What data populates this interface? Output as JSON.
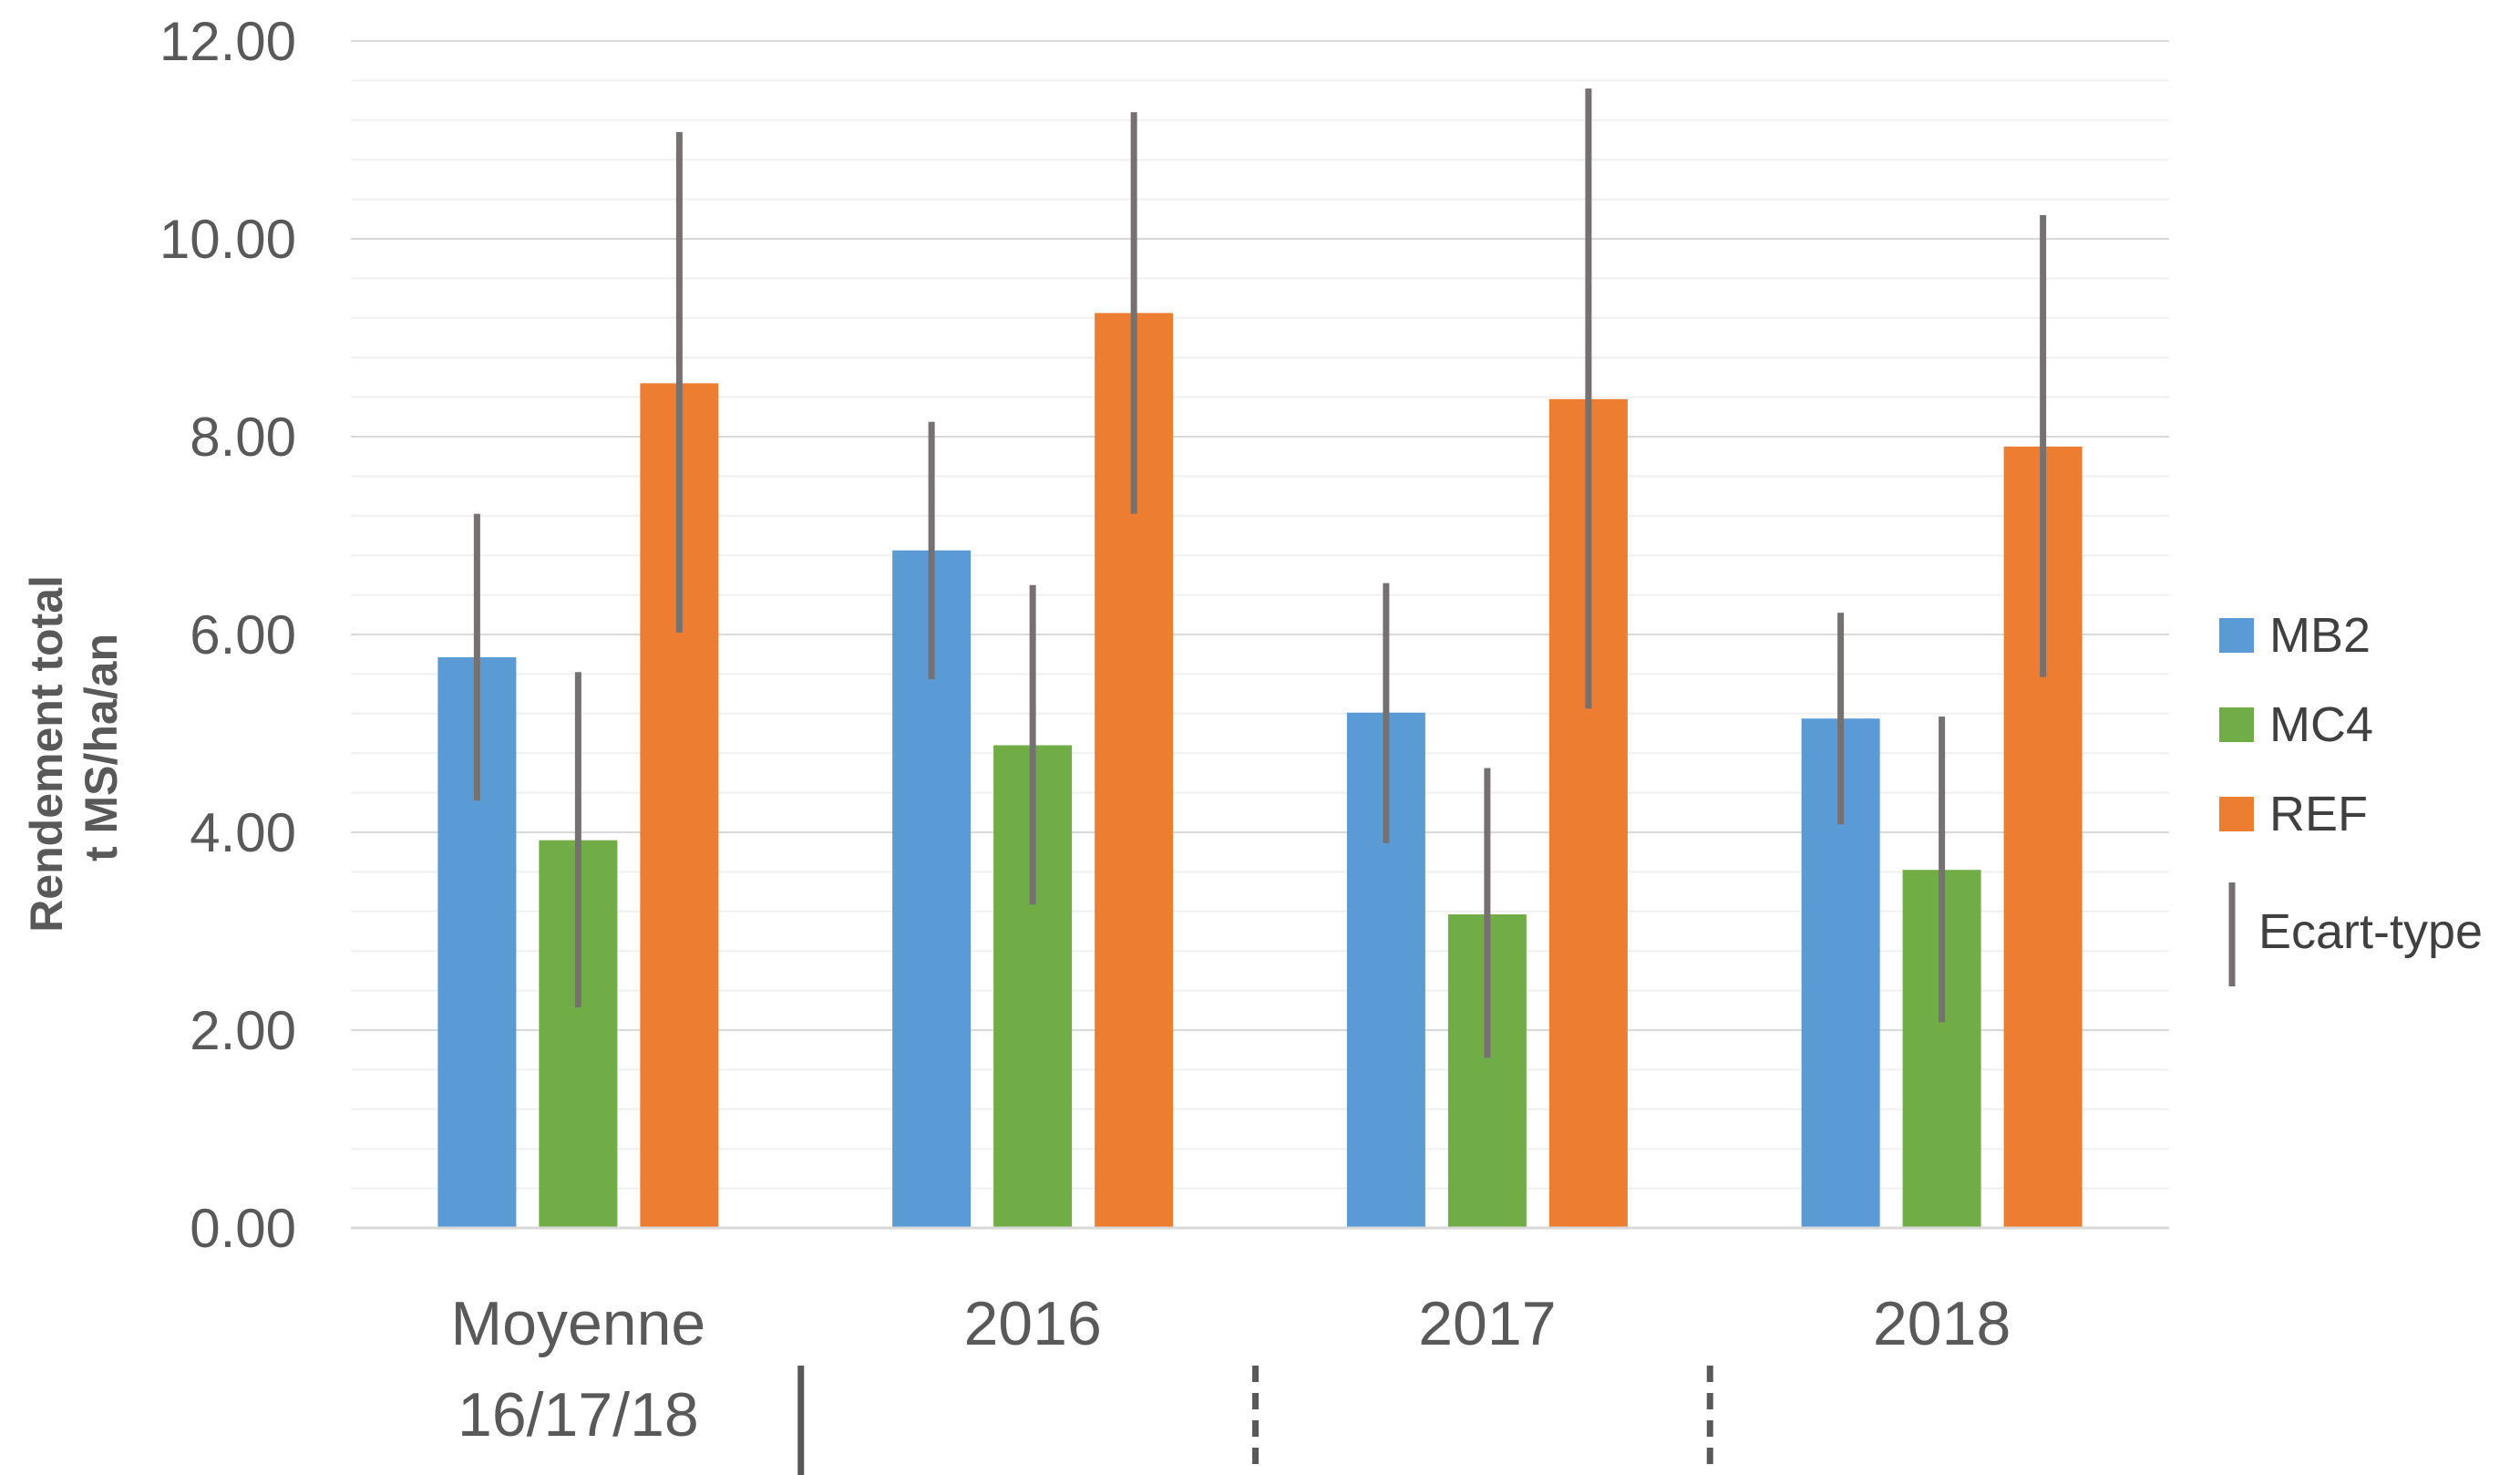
{
  "chart_data": {
    "type": "bar",
    "title": "",
    "ylabel": [
      "Rendement total",
      "t MS/ha/an"
    ],
    "xlabel": "",
    "ylim": [
      0,
      12
    ],
    "yticks": [
      "0.00",
      "2.00",
      "4.00",
      "6.00",
      "8.00",
      "10.00",
      "12.00"
    ],
    "grid": "major and minor horizontal",
    "categories": [
      [
        "Moyenne",
        "16/17/18"
      ],
      [
        "2016"
      ],
      [
        "2017"
      ],
      [
        "2018"
      ]
    ],
    "series": [
      {
        "name": "MB2",
        "color": "#5B9BD5",
        "values": [
          5.77,
          6.85,
          5.21,
          5.15
        ],
        "err_low": [
          4.32,
          5.55,
          3.89,
          4.08
        ],
        "err_high": [
          7.22,
          8.15,
          6.52,
          6.22
        ]
      },
      {
        "name": "MC4",
        "color": "#70AD47",
        "values": [
          3.92,
          4.88,
          3.17,
          3.62
        ],
        "err_low": [
          2.23,
          3.27,
          1.72,
          2.08
        ],
        "err_high": [
          5.62,
          6.5,
          4.65,
          5.17
        ]
      },
      {
        "name": "REF",
        "color": "#ED7D31",
        "values": [
          8.54,
          9.25,
          8.38,
          7.9
        ],
        "err_low": [
          6.02,
          7.22,
          5.25,
          5.57
        ],
        "err_high": [
          11.08,
          11.28,
          11.52,
          10.24
        ]
      }
    ],
    "error_bar_color": "#767171",
    "legend": {
      "position": "right",
      "errorbar_label": "Ecart-type"
    },
    "separators": [
      "solid",
      "dashed",
      "dashed"
    ]
  }
}
